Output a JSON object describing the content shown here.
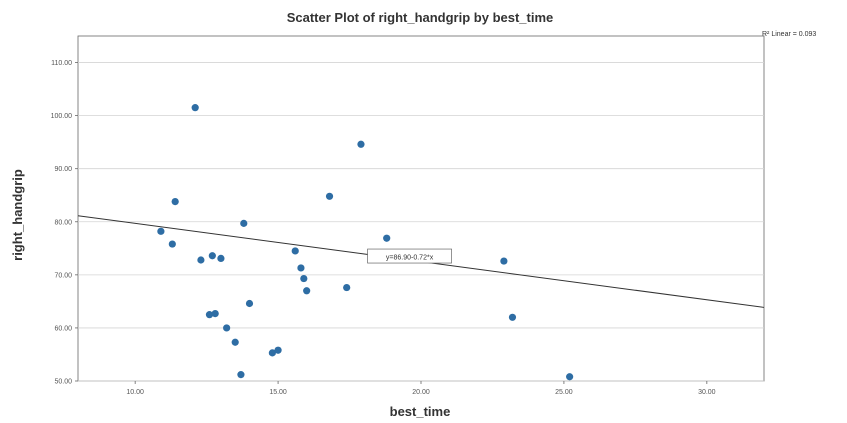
{
  "chart_data": {
    "type": "scatter",
    "title": "Scatter Plot of right_handgrip by best_time",
    "xlabel": "best_time",
    "ylabel": "right_handgrip",
    "xlim": [
      8.0,
      32.0
    ],
    "ylim": [
      50.0,
      115.0
    ],
    "x_ticks": [
      "10.00",
      "15.00",
      "20.00",
      "25.00",
      "30.00"
    ],
    "x_tick_values": [
      10,
      15,
      20,
      25,
      30
    ],
    "y_ticks": [
      "50.00",
      "60.00",
      "70.00",
      "80.00",
      "90.00",
      "100.00",
      "110.00"
    ],
    "y_tick_values": [
      50,
      60,
      70,
      80,
      90,
      100,
      110
    ],
    "grid": "horizontal",
    "legend_text": "R² Linear = 0.093",
    "fit_equation": "y=86.90-0.72*x",
    "fit_line": {
      "intercept": 86.9,
      "slope": -0.72
    },
    "point_color": "#2e6da4",
    "line_color": "#333333",
    "points": [
      {
        "x": 12.1,
        "y": 101.5
      },
      {
        "x": 11.4,
        "y": 83.8
      },
      {
        "x": 10.9,
        "y": 78.2
      },
      {
        "x": 11.3,
        "y": 75.8
      },
      {
        "x": 12.3,
        "y": 72.8
      },
      {
        "x": 12.7,
        "y": 73.6
      },
      {
        "x": 13.0,
        "y": 73.1
      },
      {
        "x": 12.6,
        "y": 62.5
      },
      {
        "x": 12.8,
        "y": 62.7
      },
      {
        "x": 13.2,
        "y": 60.0
      },
      {
        "x": 13.8,
        "y": 79.7
      },
      {
        "x": 14.0,
        "y": 64.6
      },
      {
        "x": 13.5,
        "y": 57.3
      },
      {
        "x": 13.7,
        "y": 51.2
      },
      {
        "x": 14.8,
        "y": 55.3
      },
      {
        "x": 15.0,
        "y": 55.8
      },
      {
        "x": 15.6,
        "y": 74.5
      },
      {
        "x": 15.8,
        "y": 71.3
      },
      {
        "x": 15.9,
        "y": 69.3
      },
      {
        "x": 16.0,
        "y": 67.0
      },
      {
        "x": 16.8,
        "y": 84.8
      },
      {
        "x": 17.4,
        "y": 67.6
      },
      {
        "x": 17.9,
        "y": 94.6
      },
      {
        "x": 18.8,
        "y": 76.9
      },
      {
        "x": 22.9,
        "y": 72.6
      },
      {
        "x": 23.2,
        "y": 62.0
      },
      {
        "x": 25.2,
        "y": 50.8
      }
    ]
  }
}
